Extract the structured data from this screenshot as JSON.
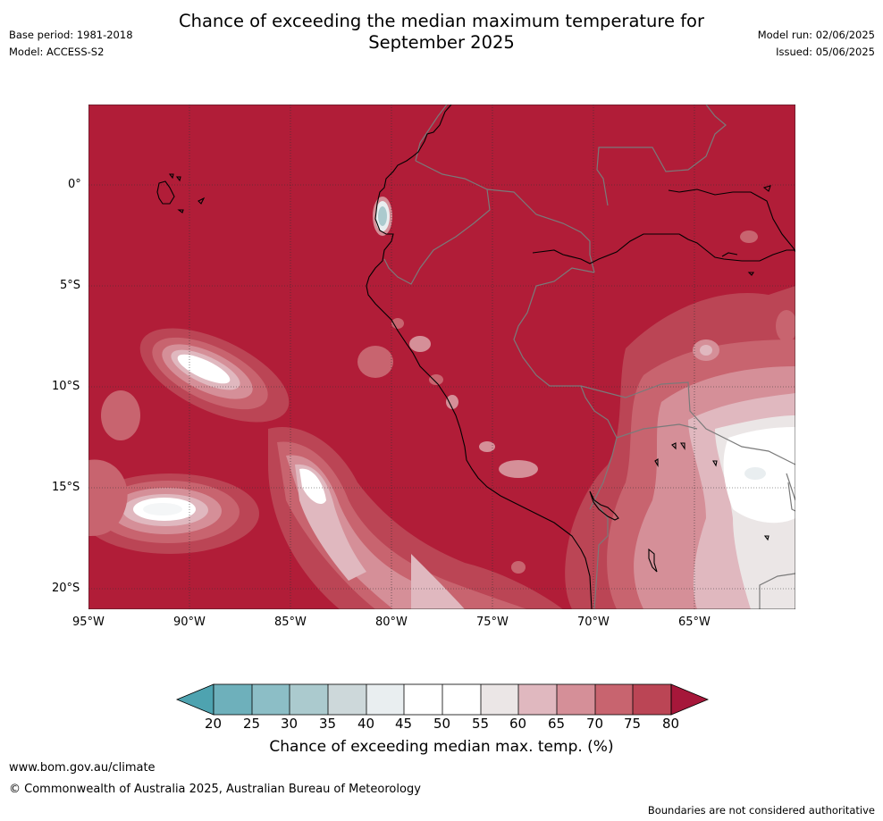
{
  "header": {
    "title_line1": "Chance of exceeding the median maximum temperature for",
    "title_line2": "September 2025",
    "base_period": "Base period: 1981-2018",
    "model": "Model: ACCESS-S2",
    "model_run": "Model run: 02/06/2025",
    "issued": "Issued: 05/06/2025"
  },
  "map": {
    "background_color": "#b11d38",
    "lat_labels": [
      "0°",
      "5°S",
      "10°S",
      "15°S",
      "20°S"
    ],
    "lon_labels": [
      "95°W",
      "90°W",
      "85°W",
      "80°W",
      "75°W",
      "70°W",
      "65°W"
    ],
    "grid": true
  },
  "colorbar": {
    "label": "Chance of exceeding median max. temp. (%)",
    "ticks": [
      "20",
      "25",
      "30",
      "35",
      "40",
      "45",
      "50",
      "55",
      "60",
      "65",
      "70",
      "75",
      "80"
    ],
    "colors": [
      "#4ea3b0",
      "#6eb0bb",
      "#8cbec6",
      "#abcace",
      "#cdd8da",
      "#e9eef0",
      "#ffffff",
      "#ffffff",
      "#ebe6e6",
      "#e0b8bf",
      "#d58f98",
      "#c8646f",
      "#bb4555",
      "#a6173a"
    ]
  },
  "footer": {
    "website": "www.bom.gov.au/climate",
    "copyright": "© Commonwealth of Australia 2025, Australian Bureau of Meteorology",
    "disclaimer": "Boundaries are not considered authoritative"
  }
}
